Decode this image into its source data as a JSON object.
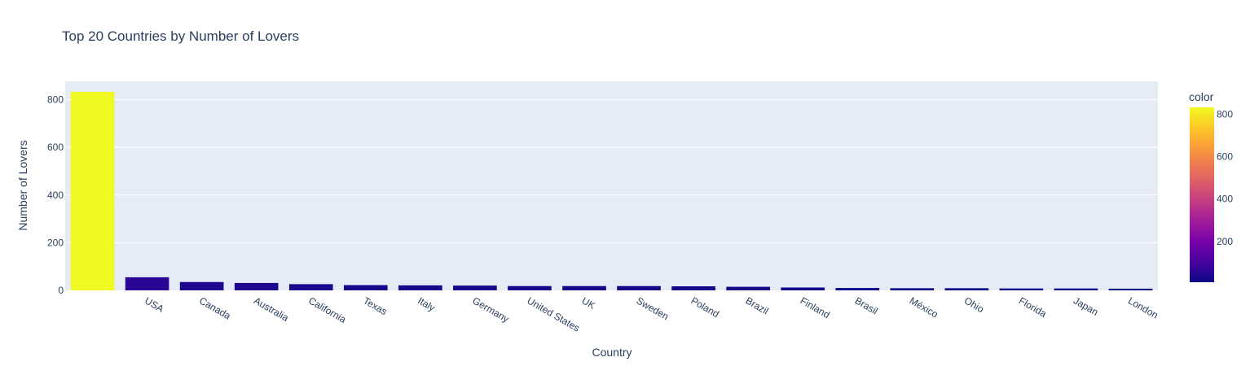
{
  "chart_data": {
    "type": "bar",
    "title": "Top 20 Countries by Number of Lovers",
    "xlabel": "Country",
    "ylabel": "Number of Lovers",
    "categories": [
      "",
      "USA",
      "Canada",
      "Australia",
      "California",
      "Texas",
      "Italy",
      "Germany",
      "United States",
      "UK",
      "Sweden",
      "Poland",
      "Brazil",
      "Finland",
      "Brasil",
      "México",
      "Ohio",
      "Florida",
      "Japan",
      "London"
    ],
    "values": [
      833,
      55,
      35,
      31,
      26,
      22,
      21,
      20,
      18,
      18,
      18,
      17,
      15,
      12,
      10,
      9,
      9,
      8,
      8,
      7
    ],
    "ylim": [
      0,
      877
    ],
    "yticks": [
      0,
      200,
      400,
      600,
      800
    ],
    "grid": true,
    "colorbar": {
      "title": "color",
      "ticks": [
        200,
        400,
        600,
        800
      ],
      "range": [
        7,
        833
      ]
    },
    "colors": {
      "plot_bg": "#e5ecf6",
      "grid": "#ffffff",
      "text": "#2a3f5f",
      "scale": [
        "#0d0887",
        "#46039f",
        "#7201a8",
        "#9c179e",
        "#bd3786",
        "#d8576b",
        "#ed7953",
        "#fb9f3a",
        "#fdca26",
        "#f0f921"
      ]
    }
  }
}
